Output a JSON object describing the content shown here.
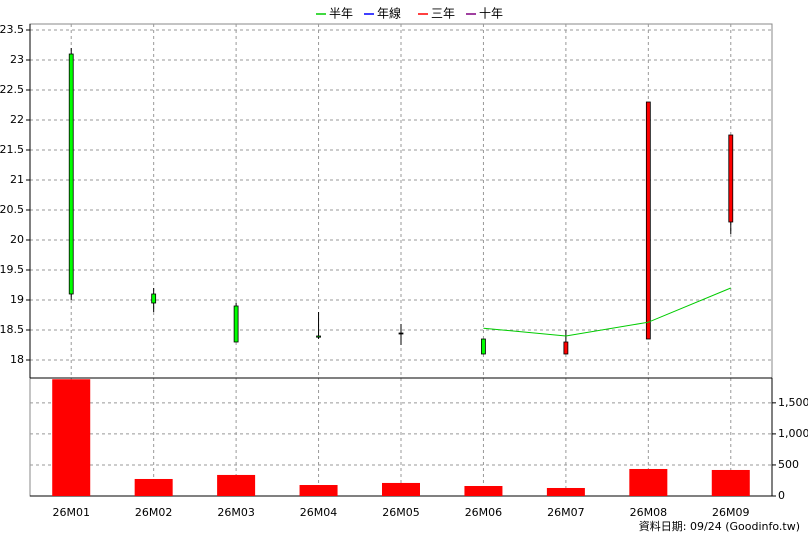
{
  "chart_data": {
    "type": "candlestick",
    "series": [
      {
        "name": "半年",
        "color": "#00cc00",
        "values": [
          null,
          null,
          null,
          null,
          null,
          18.53,
          18.4,
          18.63,
          19.2
        ]
      },
      {
        "name": "年線",
        "color": "#0000ff",
        "values": [
          null,
          null,
          null,
          null,
          null,
          null,
          null,
          null,
          null
        ]
      },
      {
        "name": "三年",
        "color": "#ff0000",
        "values": [
          null,
          null,
          null,
          null,
          null,
          null,
          null,
          null,
          null
        ]
      },
      {
        "name": "十年",
        "color": "#800080",
        "values": [
          null,
          null,
          null,
          null,
          null,
          null,
          null,
          null,
          null
        ]
      }
    ],
    "categories": [
      "26M01",
      "26M02",
      "26M03",
      "26M04",
      "26M05",
      "26M06",
      "26M07",
      "26M08",
      "26M09"
    ],
    "open": [
      23.1,
      19.1,
      18.9,
      18.4,
      18.45,
      18.35,
      18.1,
      18.35,
      20.3
    ],
    "high": [
      23.2,
      19.2,
      18.95,
      18.8,
      18.6,
      18.35,
      18.5,
      22.3,
      21.75
    ],
    "low": [
      19.0,
      18.8,
      18.3,
      18.35,
      18.25,
      18.1,
      18.1,
      18.35,
      20.1
    ],
    "close": [
      19.1,
      18.95,
      18.3,
      18.38,
      18.45,
      18.1,
      18.3,
      22.3,
      21.75
    ],
    "up_color": "#ff0000",
    "down_color": "#00ff00",
    "ylim": [
      17.7,
      23.6
    ],
    "yticks": [
      18,
      18.5,
      19,
      19.5,
      20,
      20.5,
      21,
      21.5,
      22,
      22.5,
      23,
      23.5
    ],
    "volume": {
      "values": [
        1880,
        274,
        339,
        177,
        210,
        161,
        129,
        435,
        419
      ],
      "color": "#ff0000"
    },
    "y2lim": [
      0,
      1900
    ],
    "y2ticks": [
      0,
      500,
      {
        "value": 1000,
        "label": "1,000"
      },
      {
        "value": 1500,
        "label": "1,500"
      }
    ],
    "grid": true,
    "footer": "資料日期: 09/24  (Goodinfo.tw)"
  }
}
